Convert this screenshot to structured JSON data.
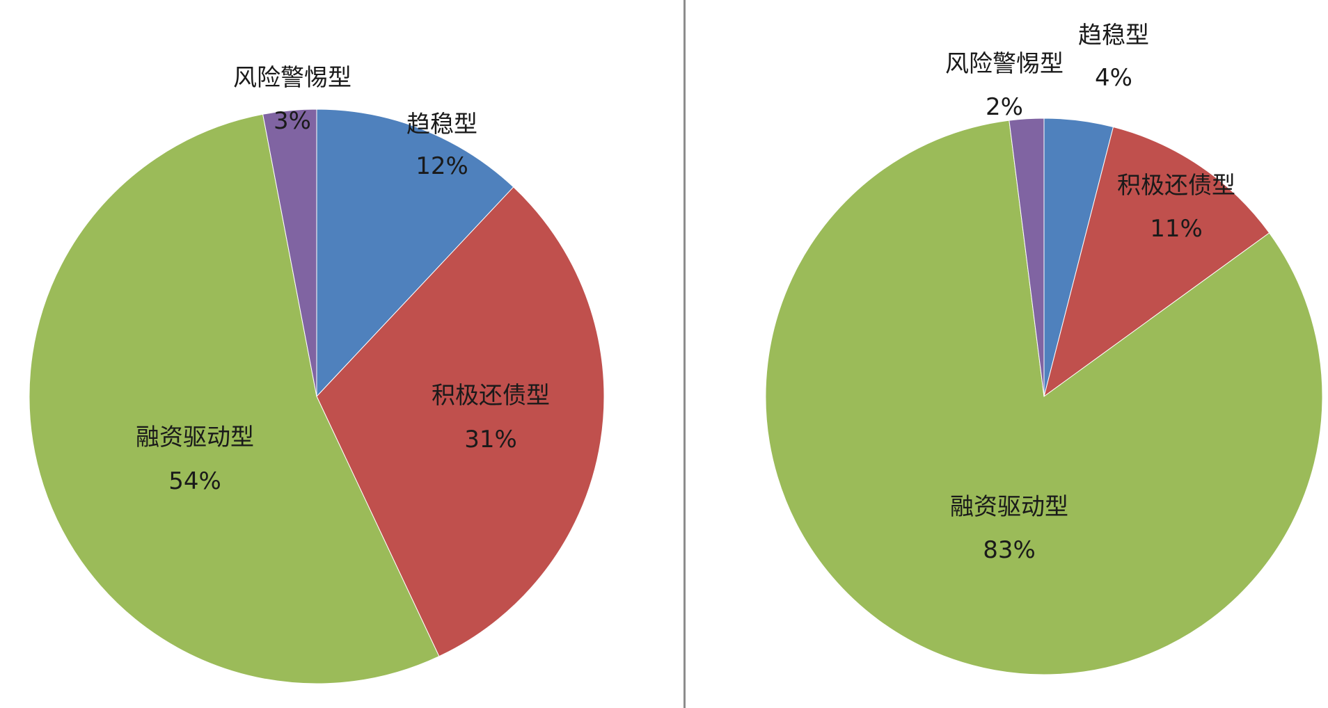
{
  "chart_data": [
    {
      "type": "pie",
      "slices": [
        {
          "label": "趋稳型",
          "value": 12,
          "pct_label": "12%",
          "color": "#4f81bd"
        },
        {
          "label": "积极还债型",
          "value": 31,
          "pct_label": "31%",
          "color": "#c0504d"
        },
        {
          "label": "融资驱动型",
          "value": 54,
          "pct_label": "54%",
          "color": "#9bbb59"
        },
        {
          "label": "风险警惕型",
          "value": 3,
          "pct_label": "3%",
          "color": "#8064a2"
        }
      ]
    },
    {
      "type": "pie",
      "slices": [
        {
          "label": "趋稳型",
          "value": 4,
          "pct_label": "4%",
          "color": "#4f81bd"
        },
        {
          "label": "积极还债型",
          "value": 11,
          "pct_label": "11%",
          "color": "#c0504d"
        },
        {
          "label": "融资驱动型",
          "value": 83,
          "pct_label": "83%",
          "color": "#9bbb59"
        },
        {
          "label": "风险警惕型",
          "value": 2,
          "pct_label": "2%",
          "color": "#8064a2"
        }
      ]
    }
  ]
}
